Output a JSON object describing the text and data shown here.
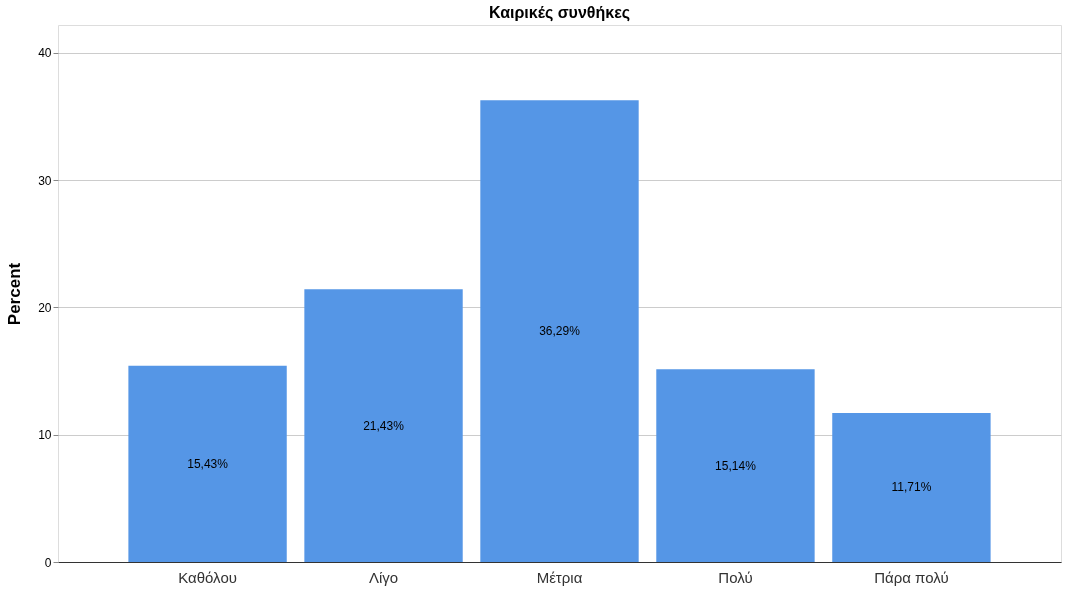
{
  "chart_data": {
    "type": "bar",
    "title": "Καιρικές συνθήκες",
    "ylabel": "Percent",
    "categories": [
      "Καθόλου",
      "Λίγο",
      "Μέτρια",
      "Πολύ",
      "Πάρα πολύ"
    ],
    "values": [
      15.43,
      21.43,
      36.29,
      15.14,
      11.71
    ],
    "value_labels": [
      "15,43%",
      "21,43%",
      "36,29%",
      "15,14%",
      "11,71%"
    ],
    "color": "#5596e6",
    "ylim": [
      0,
      42.2
    ],
    "yticks": [
      0,
      10,
      20,
      30,
      40
    ],
    "grid": "y"
  }
}
